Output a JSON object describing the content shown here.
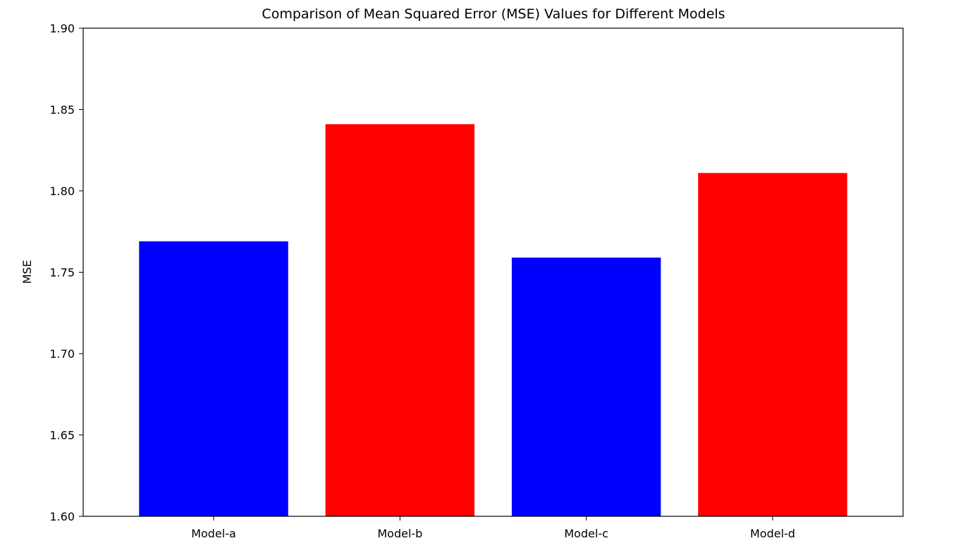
{
  "chart_data": {
    "type": "bar",
    "title": "Comparison of Mean Squared Error (MSE) Values for Different Models",
    "xlabel": "",
    "ylabel": "MSE",
    "categories": [
      "Model-a",
      "Model-b",
      "Model-c",
      "Model-d"
    ],
    "values": [
      1.769,
      1.841,
      1.759,
      1.811
    ],
    "colors": [
      "#0000ff",
      "#ff0000",
      "#0000ff",
      "#ff0000"
    ],
    "ylim": [
      1.6,
      1.9
    ],
    "yticks": [
      "1.60",
      "1.65",
      "1.70",
      "1.75",
      "1.80",
      "1.85",
      "1.90"
    ],
    "grid": false,
    "legend": "none"
  }
}
